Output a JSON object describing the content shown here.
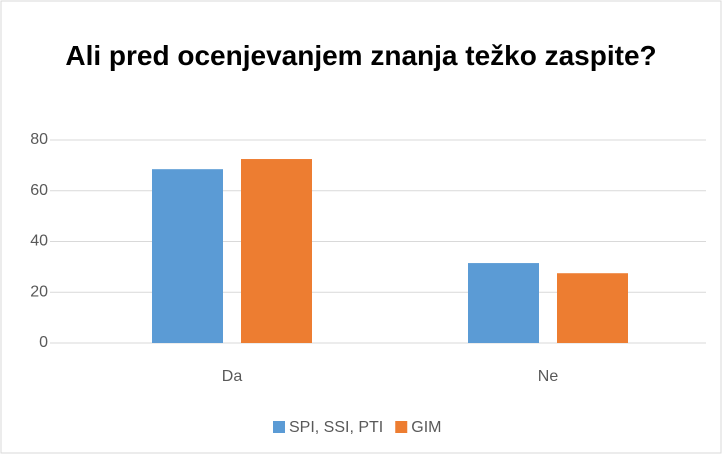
{
  "chart_data": {
    "type": "bar",
    "title": "Ali pred ocenjevanjem znanja težko zaspite?",
    "categories": [
      "Da",
      "Ne"
    ],
    "series": [
      {
        "name": "SPI, SSI, PTI",
        "color": "#5b9bd5",
        "values": [
          68.5,
          31.5
        ]
      },
      {
        "name": "GIM",
        "color": "#ed7d31",
        "values": [
          72.5,
          27.5
        ]
      }
    ],
    "ylim": [
      0,
      80
    ],
    "yticks": [
      0,
      20,
      40,
      60,
      80
    ],
    "grid": true,
    "legend": "bottom"
  }
}
